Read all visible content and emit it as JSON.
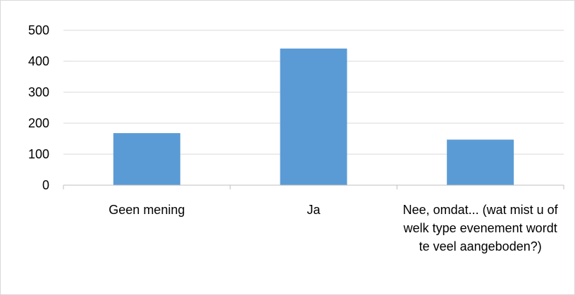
{
  "chart_data": {
    "type": "bar",
    "title": "",
    "xlabel": "",
    "ylabel": "",
    "categories": [
      "Geen mening",
      "Ja",
      "Nee, omdat... (wat mist u of welk type evenement wordt te veel aangeboden?)"
    ],
    "values": [
      168,
      441,
      147
    ],
    "ylim": [
      0,
      500
    ],
    "yticks": [
      0,
      100,
      200,
      300,
      400,
      500
    ],
    "grid": true,
    "legend": "none",
    "bar_color": "#5b9bd5",
    "grid_color": "#d9d9d9",
    "axis_color": "#bfbfbf"
  }
}
